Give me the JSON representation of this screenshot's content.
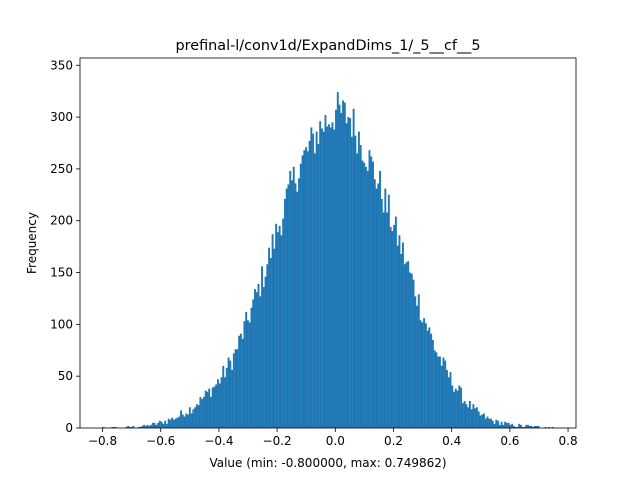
{
  "chart_data": {
    "type": "bar",
    "title": "prefinal-l/conv1d/ExpandDims_1/_5__cf__5",
    "xlabel": "Value (min: -0.800000, max: 0.749862)",
    "ylabel": "Frequency",
    "xlim": [
      -0.8775,
      0.8273
    ],
    "ylim": [
      0,
      357
    ],
    "xticks": [
      -0.8,
      -0.6,
      -0.4,
      -0.2,
      0.0,
      0.2,
      0.4,
      0.6,
      0.8
    ],
    "xtick_labels": [
      "−0.8",
      "−0.6",
      "−0.4",
      "−0.2",
      "0.0",
      "0.2",
      "0.4",
      "0.6",
      "0.8"
    ],
    "yticks": [
      0,
      50,
      100,
      150,
      200,
      250,
      300,
      350
    ],
    "ytick_labels": [
      "0",
      "50",
      "100",
      "150",
      "200",
      "250",
      "300",
      "350"
    ],
    "bins": 256,
    "bin_min": -0.8,
    "bin_max": 0.749862,
    "peak_anchors": [
      {
        "x": -0.75,
        "y": 0
      },
      {
        "x": -0.65,
        "y": 2
      },
      {
        "x": -0.6,
        "y": 5
      },
      {
        "x": -0.55,
        "y": 10
      },
      {
        "x": -0.5,
        "y": 18
      },
      {
        "x": -0.45,
        "y": 30
      },
      {
        "x": -0.4,
        "y": 45
      },
      {
        "x": -0.35,
        "y": 68
      },
      {
        "x": -0.3,
        "y": 105
      },
      {
        "x": -0.25,
        "y": 145
      },
      {
        "x": -0.2,
        "y": 190
      },
      {
        "x": -0.15,
        "y": 235
      },
      {
        "x": -0.1,
        "y": 265
      },
      {
        "x": -0.05,
        "y": 290
      },
      {
        "x": 0.0,
        "y": 305
      },
      {
        "x": 0.05,
        "y": 300
      },
      {
        "x": 0.1,
        "y": 270
      },
      {
        "x": 0.15,
        "y": 235
      },
      {
        "x": 0.2,
        "y": 195
      },
      {
        "x": 0.25,
        "y": 155
      },
      {
        "x": 0.3,
        "y": 110
      },
      {
        "x": 0.35,
        "y": 72
      },
      {
        "x": 0.4,
        "y": 45
      },
      {
        "x": 0.45,
        "y": 25
      },
      {
        "x": 0.5,
        "y": 12
      },
      {
        "x": 0.55,
        "y": 6
      },
      {
        "x": 0.6,
        "y": 3
      },
      {
        "x": 0.7,
        "y": 1
      },
      {
        "x": 0.75,
        "y": 0
      }
    ],
    "bar_color": "#1f77b4",
    "grid": false,
    "legend": "none"
  }
}
